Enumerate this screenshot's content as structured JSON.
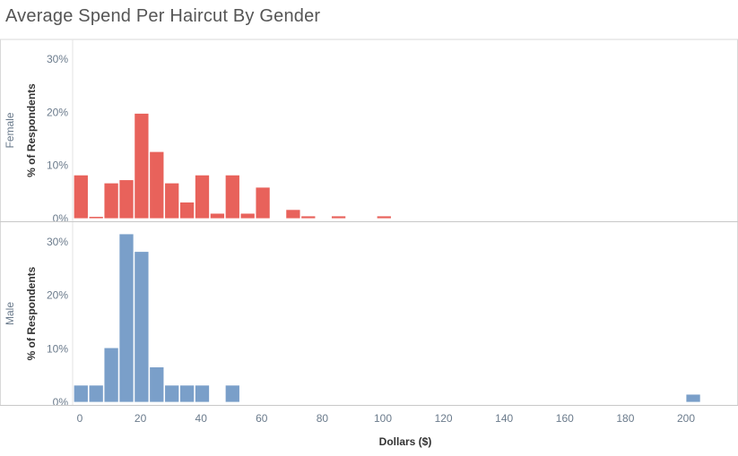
{
  "chart_data": {
    "type": "bar",
    "title": "Average Spend Per Haircut By Gender",
    "xlabel": "Dollars ($)",
    "ylabel": "% of Respondents",
    "xlim": [
      -2,
      210
    ],
    "ylim": [
      0,
      31
    ],
    "x_ticks": [
      0,
      20,
      40,
      60,
      80,
      100,
      120,
      140,
      160,
      180,
      200
    ],
    "y_ticks": [
      0,
      10,
      20,
      30
    ],
    "bin_width": 5,
    "grid": false,
    "panels": [
      {
        "name": "Female",
        "color": "#e8625b",
        "bins": [
          {
            "x0": -2,
            "value": 8.2
          },
          {
            "x0": 3,
            "value": 0.4
          },
          {
            "x0": 8,
            "value": 6.7
          },
          {
            "x0": 13,
            "value": 7.3
          },
          {
            "x0": 18,
            "value": 19.8
          },
          {
            "x0": 23,
            "value": 12.6
          },
          {
            "x0": 28,
            "value": 6.7
          },
          {
            "x0": 33,
            "value": 3.1
          },
          {
            "x0": 38,
            "value": 8.2
          },
          {
            "x0": 43,
            "value": 1.0
          },
          {
            "x0": 48,
            "value": 8.2
          },
          {
            "x0": 53,
            "value": 1.0
          },
          {
            "x0": 58,
            "value": 5.9
          },
          {
            "x0": 68,
            "value": 1.7
          },
          {
            "x0": 73,
            "value": 0.5
          },
          {
            "x0": 83,
            "value": 0.5
          },
          {
            "x0": 98,
            "value": 0.5
          }
        ]
      },
      {
        "name": "Male",
        "color": "#7a9fc9",
        "bins": [
          {
            "x0": -2,
            "value": 3.2
          },
          {
            "x0": 3,
            "value": 3.2
          },
          {
            "x0": 8,
            "value": 10.2
          },
          {
            "x0": 13,
            "value": 31.5
          },
          {
            "x0": 18,
            "value": 28.2
          },
          {
            "x0": 23,
            "value": 6.6
          },
          {
            "x0": 28,
            "value": 3.2
          },
          {
            "x0": 33,
            "value": 3.2
          },
          {
            "x0": 38,
            "value": 3.2
          },
          {
            "x0": 48,
            "value": 3.2
          },
          {
            "x0": 200,
            "value": 1.5
          }
        ]
      }
    ]
  }
}
